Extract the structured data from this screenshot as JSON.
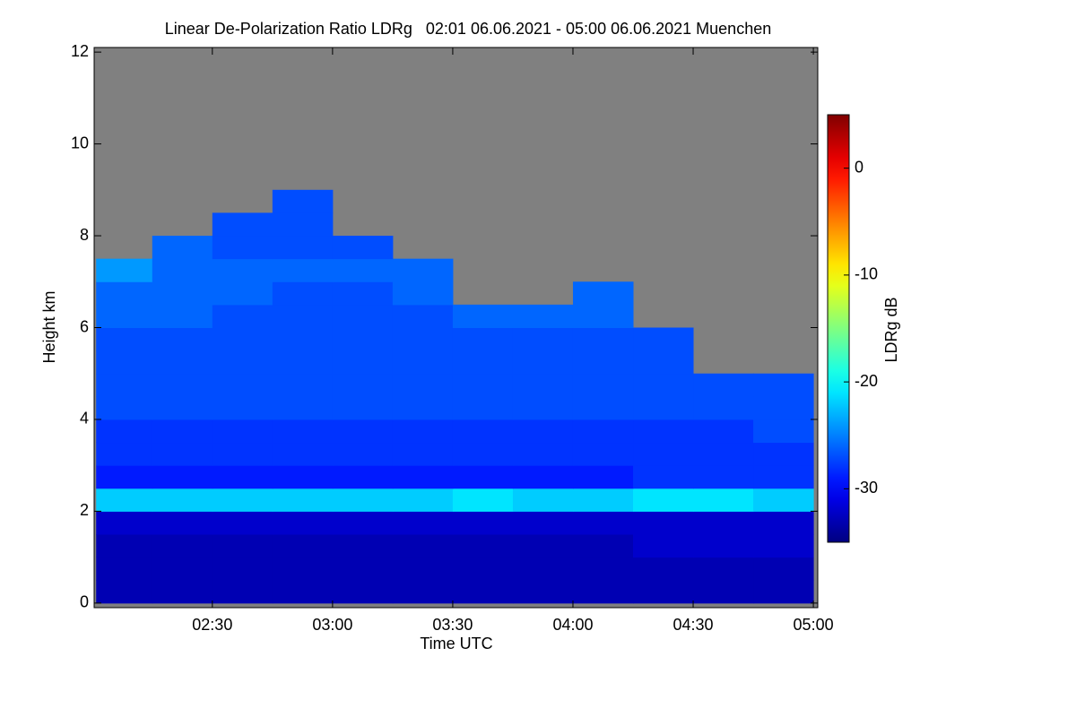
{
  "chart_data": {
    "type": "heatmap",
    "title": "Linear De-Polarization Ratio LDRg   02:01 06.06.2021 - 05:00 06.06.2021 Muenchen",
    "x_label": "Time UTC",
    "y_label": "Height km",
    "colorbar_label": "LDRg dB",
    "colormap": "jet",
    "missing_color": "#808080",
    "x_edges": [
      121,
      135,
      150,
      165,
      180,
      195,
      210,
      225,
      240,
      255,
      270,
      285,
      300
    ],
    "y_edges": [
      0,
      0.5,
      1,
      1.5,
      2,
      2.5,
      3,
      3.5,
      4,
      4.5,
      5,
      5.5,
      6,
      6.5,
      7,
      7.5,
      8,
      8.5,
      9,
      9.5,
      10,
      10.5,
      11,
      11.5,
      12
    ],
    "values": [
      [
        -33,
        -33,
        -33,
        -33,
        -33,
        -33,
        -33,
        -33,
        -33,
        -33,
        -33,
        -33
      ],
      [
        -33,
        -33,
        -33,
        -33,
        -33,
        -33,
        -33,
        -33,
        -33,
        -33,
        -33,
        -33
      ],
      [
        -33,
        -33,
        -33,
        -33,
        -33,
        -33,
        -33,
        -33,
        -33,
        -32,
        -32,
        -32
      ],
      [
        -32,
        -32,
        -32,
        -32,
        -32,
        -32,
        -32,
        -32,
        -32,
        -32,
        -32,
        -32
      ],
      [
        -22,
        -22,
        -22,
        -22,
        -22,
        -22,
        -21,
        -22,
        -22,
        -21,
        -21,
        -22
      ],
      [
        -29,
        -29,
        -29,
        -29,
        -29,
        -29,
        -29,
        -29,
        -29,
        -28,
        -28,
        -28
      ],
      [
        -28,
        -28,
        -28,
        -28,
        -28,
        -28,
        -28,
        -28,
        -28,
        -28,
        -28,
        -28
      ],
      [
        -28,
        -28,
        -28,
        -28,
        -28,
        -28,
        -28,
        -28,
        -28,
        -28,
        -28,
        -27
      ],
      [
        -27,
        -27,
        -27,
        -27,
        -27,
        -27,
        -27,
        -27,
        -27,
        -27,
        -27,
        -27
      ],
      [
        -27,
        -27,
        -27,
        -27,
        -27,
        -27,
        -27,
        -27,
        -27,
        -27,
        -27,
        -27
      ],
      [
        -27,
        -27,
        -27,
        -27,
        -27,
        -27,
        -27,
        -27,
        -27,
        -27,
        null,
        null
      ],
      [
        -27,
        -27,
        -27,
        -27,
        -27,
        -27,
        -27,
        -27,
        -27,
        -27,
        null,
        null
      ],
      [
        -26,
        -26,
        -27,
        -27,
        -27,
        -27,
        -26,
        -26,
        -26,
        null,
        null,
        null
      ],
      [
        -26,
        -26,
        -26,
        -27,
        -27,
        -26,
        null,
        null,
        -26,
        null,
        null,
        null
      ],
      [
        -24,
        -26,
        -26,
        -26,
        -26,
        -26,
        null,
        null,
        null,
        null,
        null,
        null
      ],
      [
        null,
        -26,
        -27,
        -27,
        -27,
        null,
        null,
        null,
        null,
        null,
        null,
        null
      ],
      [
        null,
        null,
        -27,
        -27,
        null,
        null,
        null,
        null,
        null,
        null,
        null,
        null
      ],
      [
        null,
        null,
        null,
        -27,
        null,
        null,
        null,
        null,
        null,
        null,
        null,
        null
      ],
      [
        null,
        null,
        null,
        null,
        null,
        null,
        null,
        null,
        null,
        null,
        null,
        null
      ],
      [
        null,
        null,
        null,
        null,
        null,
        null,
        null,
        null,
        null,
        null,
        null,
        null
      ],
      [
        null,
        null,
        null,
        null,
        null,
        null,
        null,
        null,
        null,
        null,
        null,
        null
      ],
      [
        null,
        null,
        null,
        null,
        null,
        null,
        null,
        null,
        null,
        null,
        null,
        null
      ],
      [
        null,
        null,
        null,
        null,
        null,
        null,
        null,
        null,
        null,
        null,
        null,
        null
      ],
      [
        null,
        null,
        null,
        null,
        null,
        null,
        null,
        null,
        null,
        null,
        null,
        null
      ]
    ],
    "xlim": [
      120.5,
      301.1
    ],
    "ylim": [
      -0.1,
      12.1
    ],
    "xticks": [
      {
        "value": 150,
        "label": "02:30"
      },
      {
        "value": 180,
        "label": "03:00"
      },
      {
        "value": 210,
        "label": "03:30"
      },
      {
        "value": 240,
        "label": "04:00"
      },
      {
        "value": 270,
        "label": "04:30"
      },
      {
        "value": 300,
        "label": "05:00"
      }
    ],
    "yticks": [
      0,
      2,
      4,
      6,
      8,
      10,
      12
    ],
    "clim": [
      -35,
      5
    ],
    "cticks": [
      0,
      -10,
      -20,
      -30
    ]
  }
}
